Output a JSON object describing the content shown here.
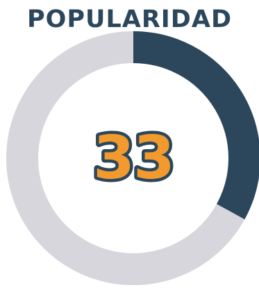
{
  "chart_data": {
    "type": "pie",
    "title": "POPULARIDAD",
    "value": 33,
    "max": 100,
    "center_label": "33"
  },
  "colors": {
    "title": "#2c475c",
    "filled": "#2c475c",
    "track": "#d6d6dc",
    "value_fill": "#f29a2e",
    "value_outline": "#2c475c"
  }
}
